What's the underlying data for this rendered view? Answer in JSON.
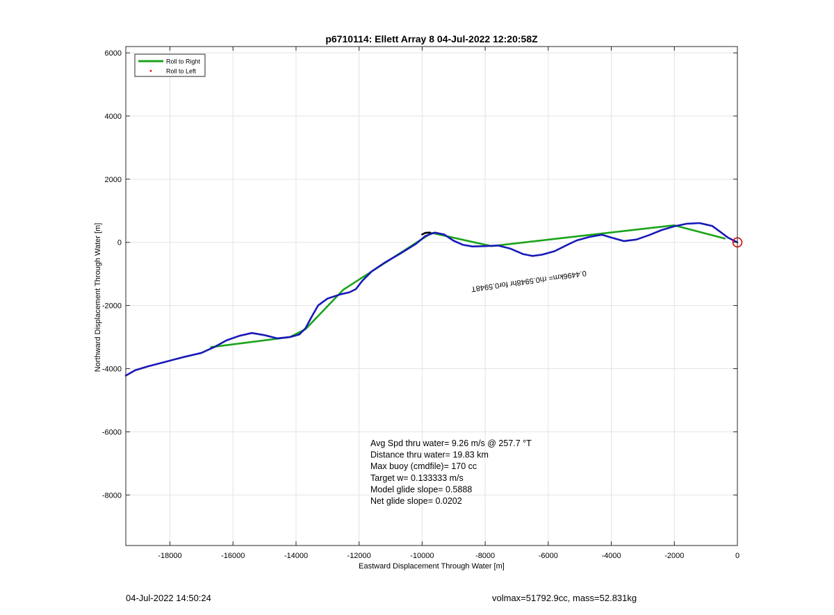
{
  "footer": {
    "left": "04-Jul-2022 14:50:24",
    "right": "volmax=51792.9cc, mass=52.831kg"
  },
  "chart_data": {
    "type": "line",
    "title": "p6710114: Ellett Array 8 04-Jul-2022 12:20:58Z",
    "xlabel": "Eastward Displacement Through Water [m]",
    "ylabel": "Northward Displacement Through Water [m]",
    "xlim": [
      -19400,
      0
    ],
    "ylim": [
      -9600,
      6200
    ],
    "xticks": [
      -18000,
      -16000,
      -14000,
      -12000,
      -10000,
      -8000,
      -6000,
      -4000,
      -2000,
      0
    ],
    "yticks": [
      -8000,
      -6000,
      -4000,
      -2000,
      0,
      2000,
      4000,
      6000
    ],
    "grid": true,
    "legend": {
      "placement": "top-left",
      "entries": [
        {
          "label": "Roll to Right",
          "color": "#1aa31a",
          "marker": "line"
        },
        {
          "label": "Roll to Left",
          "color": "#e00000",
          "marker": "dot"
        }
      ]
    },
    "series": [
      {
        "role": "heading-segments",
        "color": "#1aa31a",
        "x": [
          -16700,
          -14200,
          -13700,
          -12500,
          -9700,
          -7800,
          -2000,
          -400
        ],
        "y": [
          -3320,
          -3000,
          -2750,
          -1500,
          300,
          -120,
          540,
          120
        ]
      },
      {
        "role": "track-through-water",
        "color": "#1818b8",
        "x": [
          -19400,
          -19100,
          -18700,
          -18200,
          -17600,
          -17000,
          -16600,
          -16200,
          -15800,
          -15400,
          -15000,
          -14600,
          -14200,
          -13900,
          -13700,
          -13500,
          -13300,
          -13000,
          -12600,
          -12300,
          -12100,
          -11900,
          -11600,
          -11200,
          -10700,
          -10200,
          -9900,
          -9600,
          -9300,
          -9000,
          -8700,
          -8400,
          -8000,
          -7600,
          -7200,
          -6800,
          -6500,
          -6200,
          -5800,
          -5400,
          -5100,
          -4700,
          -4300,
          -4000,
          -3600,
          -3200,
          -2800,
          -2400,
          -2000,
          -1600,
          -1200,
          -800,
          -500,
          -300,
          -100,
          0
        ],
        "y": [
          -4220,
          -4050,
          -3930,
          -3800,
          -3640,
          -3500,
          -3320,
          -3100,
          -2960,
          -2870,
          -2940,
          -3040,
          -3000,
          -2920,
          -2720,
          -2350,
          -2000,
          -1780,
          -1650,
          -1580,
          -1480,
          -1220,
          -920,
          -650,
          -360,
          -50,
          200,
          310,
          250,
          50,
          -80,
          -130,
          -120,
          -100,
          -200,
          -370,
          -430,
          -390,
          -280,
          -80,
          60,
          170,
          240,
          150,
          40,
          90,
          230,
          390,
          510,
          590,
          610,
          520,
          300,
          150,
          50,
          0
        ]
      },
      {
        "role": "current-segment",
        "color": "#000000",
        "x": [
          -10000,
          -9900,
          -9750
        ],
        "y": [
          250,
          300,
          310
        ]
      }
    ],
    "markers": [
      {
        "role": "end-position",
        "shape": "circle",
        "color": "#e00000",
        "x": 0,
        "y": 0
      }
    ],
    "annotations": [
      {
        "text": "Avg Spd thru water=  9.26 m/s @ 257.7 °T"
      },
      {
        "text": "Distance thru water= 19.83 km"
      },
      {
        "text": "Max buoy (cmdfile)= 170 cc"
      },
      {
        "text": "Target w= 0.133333 m/s"
      },
      {
        "text": "Model glide slope= 0.5888"
      },
      {
        "text": "Net glide slope= 0.0202"
      }
    ],
    "rotated_label": {
      "text": "0.4496km= rh0.5948hr for0.5948T",
      "anchor_x": -4800,
      "anchor_y": -900
    }
  }
}
